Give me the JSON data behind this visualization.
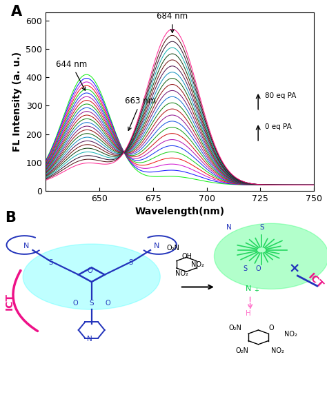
{
  "xlim": [
    625,
    750
  ],
  "ylim": [
    0,
    630
  ],
  "xticks": [
    650,
    675,
    700,
    725,
    750
  ],
  "yticks": [
    0,
    100,
    200,
    300,
    400,
    500,
    600
  ],
  "xlabel": "Wavelength(nm)",
  "ylabel": "FL Intensity (a. u.)",
  "peak1_wl": 644,
  "peak2_wl": 684,
  "isosbestic_wl": 663,
  "isosbestic_intensity": 200,
  "n_curves": 25,
  "annotation_644": "644 nm",
  "annotation_663": "663 nm",
  "annotation_684": "684 nm",
  "legend_top": "80 eq PA",
  "legend_bottom": "0 eq PA",
  "panel_label_A": "A",
  "panel_label_B": "B",
  "label_fontsize": 10,
  "tick_fontsize": 9,
  "annot_fontsize": 8.5,
  "colors": [
    "#00ee00",
    "#0000ff",
    "#cc00cc",
    "#ee0000",
    "#00cc00",
    "#0022ee",
    "#aa00aa",
    "#cc0000",
    "#009900",
    "#0044dd",
    "#880088",
    "#aa0000",
    "#007700",
    "#0066cc",
    "#660066",
    "#880000",
    "#005500",
    "#0088bb",
    "#440044",
    "#660000",
    "#003300",
    "#00aaaa",
    "#220022",
    "#440000",
    "#ff1188"
  ]
}
